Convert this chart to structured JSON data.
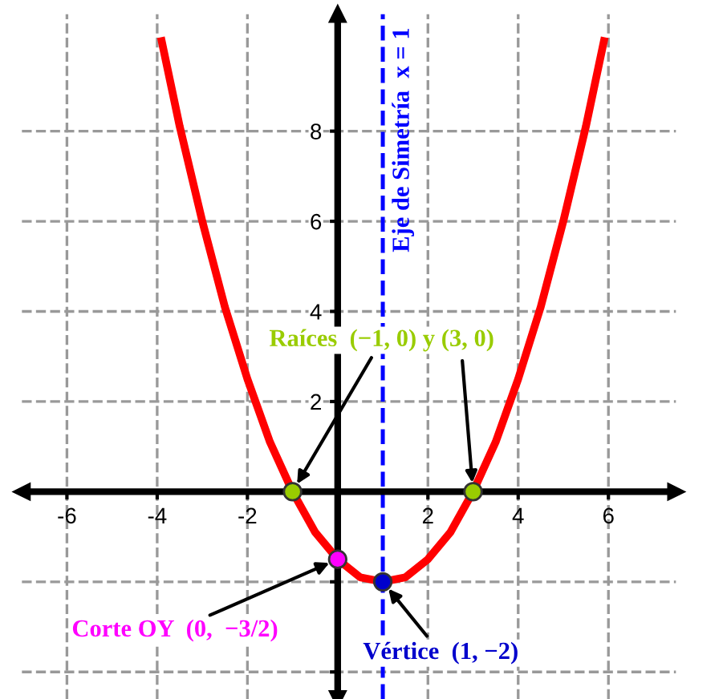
{
  "chart_data": {
    "type": "line",
    "xlim": [
      -7,
      7.5
    ],
    "ylim": [
      -4.6,
      10.6
    ],
    "xticks": [
      -6,
      -4,
      -2,
      2,
      4,
      6
    ],
    "yticks": [
      {
        "value": -4,
        "label": null
      },
      {
        "value": -2,
        "label": null
      },
      2,
      4,
      6,
      8
    ],
    "grid": true,
    "legend": false,
    "series": [
      {
        "color": "#ff0000",
        "line_style": "solid",
        "marker": "none",
        "x": [
          -3.9,
          -3.5,
          -3,
          -2.5,
          -2,
          -1.5,
          -1,
          -0.5,
          0,
          0.5,
          1,
          1.5,
          2,
          2.5,
          3,
          3.5,
          4,
          4.5,
          5,
          5.5,
          5.9
        ],
        "values": [
          10.0,
          8.1,
          6,
          4.1,
          2.5,
          1.1,
          0,
          -0.9,
          -1.5,
          -1.9,
          -2,
          -1.9,
          -1.5,
          -0.9,
          0,
          1.1,
          2.5,
          4.1,
          6,
          8.1,
          10.0
        ]
      },
      {
        "type": "scatter",
        "marker": "circle",
        "x": [
          -1,
          3,
          0,
          1
        ],
        "values": [
          0,
          0,
          -1.5,
          -2
        ],
        "colors": [
          "#99cc00",
          "#99cc00",
          "#ff00ff",
          "#0000cc"
        ]
      }
    ],
    "ref_lines": [
      {
        "axis": "x",
        "value": 1,
        "label": "Eje de Simetría  x = 1",
        "color": "#0000ff",
        "line_style": "dashed"
      }
    ],
    "annotations": [
      {
        "text": "Raíces  (−1, 0) y (3, 0)",
        "x": -1,
        "y": 0
      },
      {
        "text": "Corte OY  (0,  −3/2)",
        "x": 0,
        "y": -1.5
      },
      {
        "text": "Vértice  (1, −2)",
        "x": 1,
        "y": -2
      }
    ]
  }
}
